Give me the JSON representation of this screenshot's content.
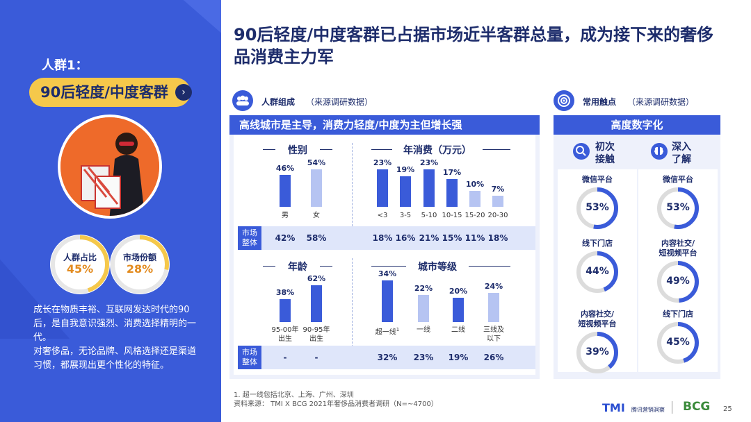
{
  "left": {
    "segment_label": "人群1：",
    "segment_name": "90后轻度/中度客群",
    "kpis": [
      {
        "label": "人群占比",
        "value": "45%",
        "fraction": 0.45
      },
      {
        "label": "市场份额",
        "value": "28%",
        "fraction": 0.28
      }
    ],
    "description": "成长在物质丰裕、互联网发达时代的90后，是自我意识强烈、消费选择精明的一代。\n对奢侈品，无论品牌、风格选择还是渠道习惯，都展现出更个性化的特征。"
  },
  "title": "90后轻度/中度客群已占据市场近半客群总量，成为接下来的奢侈品消费主力军",
  "middle": {
    "section_title": "人群组成",
    "section_source": "（来源调研数据）",
    "header": "高线城市是主导，消费力轻度/中度为主但增长强",
    "market_tag": "市场\n整体",
    "gender": {
      "title": "性别",
      "bars": [
        {
          "cat": "男",
          "value": 46,
          "label": "46%"
        },
        {
          "cat": "女",
          "value": 54,
          "label": "54%"
        }
      ],
      "market": [
        "42%",
        "58%"
      ]
    },
    "spend": {
      "title": "年消费（万元）",
      "bars": [
        {
          "cat": "<3",
          "value": 23,
          "label": "23%"
        },
        {
          "cat": "3-5",
          "value": 19,
          "label": "19%"
        },
        {
          "cat": "5-10",
          "value": 23,
          "label": "23%"
        },
        {
          "cat": "10-15",
          "value": 17,
          "label": "17%"
        },
        {
          "cat": "15-20",
          "value": 10,
          "label": "10%"
        },
        {
          "cat": "20-30",
          "value": 7,
          "label": "7%"
        }
      ],
      "market": [
        "18%",
        "16%",
        "21%",
        "15%",
        "11%",
        "18%"
      ]
    },
    "age": {
      "title": "年龄",
      "bars": [
        {
          "cat": "95-00年\n出生",
          "value": 38,
          "label": "38%"
        },
        {
          "cat": "90-95年\n出生",
          "value": 62,
          "label": "62%"
        }
      ],
      "market": [
        "-",
        "-"
      ]
    },
    "city": {
      "title": "城市等级",
      "bars": [
        {
          "cat": "超一线",
          "value": 34,
          "label": "34%",
          "sup": "1"
        },
        {
          "cat": "一线",
          "value": 22,
          "label": "22%"
        },
        {
          "cat": "二线",
          "value": 20,
          "label": "20%"
        },
        {
          "cat": "三线及\n以下",
          "value": 24,
          "label": "24%"
        }
      ],
      "market": [
        "32%",
        "23%",
        "19%",
        "26%"
      ]
    }
  },
  "right": {
    "section_title": "常用触点",
    "section_source": "（来源调研数据）",
    "header": "高度数字化",
    "columns": [
      {
        "title": "初次\n接触",
        "items": [
          {
            "label": "微信平台",
            "value": "53%",
            "fraction": 0.53
          },
          {
            "label": "线下门店",
            "value": "44%",
            "fraction": 0.44
          },
          {
            "label": "内容社交/\n短视频平台",
            "value": "39%",
            "fraction": 0.39
          }
        ]
      },
      {
        "title": "深入\n了解",
        "items": [
          {
            "label": "微信平台",
            "value": "53%",
            "fraction": 0.53
          },
          {
            "label": "内容社交/\n短视频平台",
            "value": "49%",
            "fraction": 0.49
          },
          {
            "label": "线下门店",
            "value": "45%",
            "fraction": 0.45
          }
        ]
      }
    ]
  },
  "footnote": "1. 超一线包括北京、上海、广州、深圳\n资料来源： TMI X BCG 2021年奢侈品消费者调研（N=~4700）",
  "logos": {
    "tmi": "TMI",
    "tmi_sub": "腾讯营销洞察",
    "bcg": "BCG"
  },
  "page_number": "25",
  "colors": {
    "primary": "#3a5bd9",
    "dark": "#1d2c6b",
    "light_bar": "#b6c4f2",
    "accent": "#f5c84b",
    "orange": "#e28a1d"
  }
}
